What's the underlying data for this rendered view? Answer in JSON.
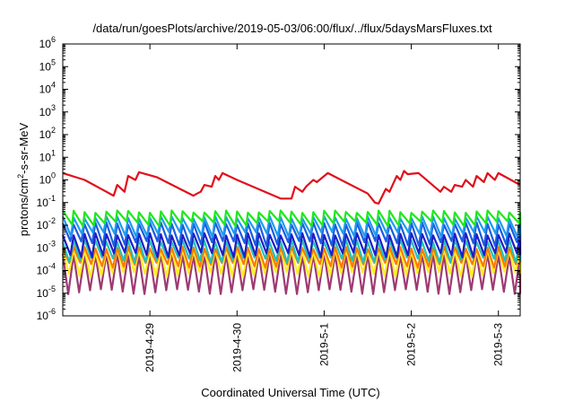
{
  "chart_data": {
    "type": "line",
    "title": "/data/run/goesPlots/archive/2019-05-03/06:00/flux/../flux/5daysMarsFluxes.txt",
    "xlabel": "Coordinated Universal Time (UTC)",
    "ylabel_main": "protons/cm",
    "ylabel_sup": "2",
    "ylabel_rest": "-s-sr-MeV",
    "y_scale": "log",
    "ylim": [
      1e-06,
      1000000.0
    ],
    "xlim": [
      "2019-04-28 00:00",
      "2019-05-03 06:00"
    ],
    "grid": false,
    "legend": "none",
    "y_ticks": [
      {
        "base": "10",
        "exp": "-6",
        "value": 1e-06
      },
      {
        "base": "10",
        "exp": "-5",
        "value": 1e-05
      },
      {
        "base": "10",
        "exp": "-4",
        "value": 0.0001
      },
      {
        "base": "10",
        "exp": "-3",
        "value": 0.001
      },
      {
        "base": "10",
        "exp": "-2",
        "value": 0.01
      },
      {
        "base": "10",
        "exp": "-1",
        "value": 0.1
      },
      {
        "base": "10",
        "exp": "0",
        "value": 1
      },
      {
        "base": "10",
        "exp": "1",
        "value": 10
      },
      {
        "base": "10",
        "exp": "2",
        "value": 100
      },
      {
        "base": "10",
        "exp": "3",
        "value": 1000
      },
      {
        "base": "10",
        "exp": "4",
        "value": 10000
      },
      {
        "base": "10",
        "exp": "5",
        "value": 100000
      },
      {
        "base": "10",
        "exp": "6",
        "value": 1000000
      }
    ],
    "x_ticks": [
      {
        "label": "2019-4-29",
        "value": "2019-04-29 00:00"
      },
      {
        "label": "2019-4-30",
        "value": "2019-04-30 00:00"
      },
      {
        "label": "2019-5-1",
        "value": "2019-05-01 00:00"
      },
      {
        "label": "2019-5-2",
        "value": "2019-05-02 00:00"
      },
      {
        "label": "2019-5-3",
        "value": "2019-05-03 00:00"
      }
    ],
    "series": [
      {
        "color": "#e0101a",
        "x": [
          "2019-04-28 00:00",
          "2019-04-28 06:00",
          "2019-04-28 12:00",
          "2019-04-28 14:00",
          "2019-04-28 15:00",
          "2019-04-28 17:00",
          "2019-04-28 18:00",
          "2019-04-28 20:00",
          "2019-04-28 21:00",
          "2019-04-29 02:00",
          "2019-04-29 12:00",
          "2019-04-29 13:00",
          "2019-04-29 14:00",
          "2019-04-29 15:00",
          "2019-04-29 17:00",
          "2019-04-29 18:00",
          "2019-04-29 19:00",
          "2019-04-29 20:00",
          "2019-04-30 00:00",
          "2019-04-30 12:00",
          "2019-04-30 15:00",
          "2019-04-30 16:00",
          "2019-04-30 18:00",
          "2019-04-30 19:00",
          "2019-04-30 21:00",
          "2019-04-30 22:00",
          "2019-05-01 01:00",
          "2019-05-01 12:00",
          "2019-05-01 14:00",
          "2019-05-01 15:00",
          "2019-05-01 17:00",
          "2019-05-01 18:00",
          "2019-05-01 20:00",
          "2019-05-01 21:00",
          "2019-05-01 22:00",
          "2019-05-01 23:00",
          "2019-05-02 02:00",
          "2019-05-02 08:00",
          "2019-05-02 09:00",
          "2019-05-02 11:00",
          "2019-05-02 12:00",
          "2019-05-02 14:00",
          "2019-05-02 15:00",
          "2019-05-02 17:00",
          "2019-05-02 18:00",
          "2019-05-02 20:00",
          "2019-05-02 21:00",
          "2019-05-02 23:00",
          "2019-05-03 00:00",
          "2019-05-03 06:00"
        ],
        "values": [
          2.0,
          1.0,
          0.3,
          0.2,
          0.6,
          0.3,
          1.5,
          1.0,
          2.2,
          1.3,
          0.2,
          0.25,
          0.3,
          0.6,
          0.5,
          1.5,
          1.0,
          2.0,
          1.0,
          0.15,
          0.15,
          0.5,
          0.3,
          0.5,
          1.0,
          0.8,
          2.0,
          0.25,
          0.1,
          0.09,
          0.4,
          0.3,
          1.5,
          1.0,
          2.5,
          1.8,
          2.0,
          0.3,
          0.5,
          0.3,
          0.6,
          0.5,
          1.0,
          0.5,
          1.5,
          0.8,
          2.0,
          1.0,
          2.0,
          0.6
        ]
      },
      {
        "color": "#1ee81e",
        "pattern": "sawtooth",
        "period_h": 3,
        "top": 0.04,
        "bottom": 0.012,
        "decline": 0.85
      },
      {
        "color": "#1e9bef",
        "pattern": "sawtooth",
        "period_h": 3,
        "top": 0.022,
        "bottom": 0.004,
        "decline": 0.75
      },
      {
        "color": "#1a5ce0",
        "pattern": "sawtooth",
        "period_h": 3,
        "top": 0.012,
        "bottom": 0.0016,
        "decline": 0.7
      },
      {
        "color": "#1e1ec8",
        "pattern": "sawtooth",
        "period_h": 3,
        "top": 0.004,
        "bottom": 0.0005,
        "decline": 0.7
      },
      {
        "color": "#22c2b8",
        "pattern": "sawtooth",
        "period_h": 3,
        "top": 0.002,
        "bottom": 0.0003,
        "decline": 0.6
      },
      {
        "color": "#ff7a00",
        "pattern": "sawtooth",
        "period_h": 3,
        "top": 0.001,
        "bottom": 0.00018,
        "decline": 0.6
      },
      {
        "color": "#ffee22",
        "pattern": "sawtooth",
        "period_h": 3,
        "top": 0.0008,
        "bottom": 7e-05,
        "decline": 0.55
      },
      {
        "color": "#9e3a72",
        "pattern": "sawtooth",
        "period_h": 3,
        "top": 0.0005,
        "bottom": 1.2e-05,
        "decline": 0.5
      }
    ]
  }
}
